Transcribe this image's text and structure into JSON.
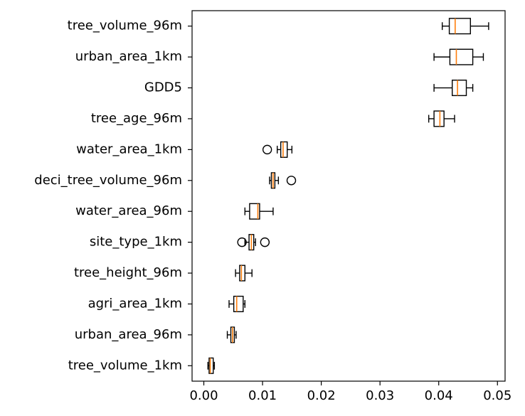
{
  "chart_data": {
    "type": "boxplot",
    "orientation": "horizontal",
    "title": "",
    "xlabel": "",
    "ylabel": "",
    "xlim": [
      -0.002,
      0.0513
    ],
    "xticks": [
      0.0,
      0.01,
      0.02,
      0.03,
      0.04,
      0.05
    ],
    "xtick_labels": [
      "0.00",
      "0.01",
      "0.02",
      "0.03",
      "0.04",
      "0.05"
    ],
    "grid": false,
    "colors": {
      "median": "#ff7f0e",
      "box_edge": "#000000",
      "box_fill": "#ffffff"
    },
    "series": [
      {
        "label": "tree_volume_96m",
        "whisker_low": 0.0406,
        "q1": 0.0418,
        "median": 0.0428,
        "q3": 0.0454,
        "whisker_high": 0.0485,
        "fliers": []
      },
      {
        "label": "urban_area_1km",
        "whisker_low": 0.0392,
        "q1": 0.0419,
        "median": 0.043,
        "q3": 0.0458,
        "whisker_high": 0.0476,
        "fliers": []
      },
      {
        "label": "GDD5",
        "whisker_low": 0.0392,
        "q1": 0.0423,
        "median": 0.0432,
        "q3": 0.0447,
        "whisker_high": 0.0458,
        "fliers": []
      },
      {
        "label": "tree_age_96m",
        "whisker_low": 0.0383,
        "q1": 0.0392,
        "median": 0.0402,
        "q3": 0.0409,
        "whisker_high": 0.0427,
        "fliers": []
      },
      {
        "label": "water_area_1km",
        "whisker_low": 0.0125,
        "q1": 0.0131,
        "median": 0.0135,
        "q3": 0.0142,
        "whisker_high": 0.015,
        "fliers": [
          0.0108
        ]
      },
      {
        "label": "deci_tree_volume_96m",
        "whisker_low": 0.0112,
        "q1": 0.0115,
        "median": 0.0118,
        "q3": 0.0121,
        "whisker_high": 0.0127,
        "fliers": [
          0.0149
        ]
      },
      {
        "label": "water_area_96m",
        "whisker_low": 0.007,
        "q1": 0.0078,
        "median": 0.0092,
        "q3": 0.0095,
        "whisker_high": 0.0118,
        "fliers": []
      },
      {
        "label": "site_type_1km",
        "whisker_low": 0.007,
        "q1": 0.0077,
        "median": 0.0081,
        "q3": 0.0085,
        "whisker_high": 0.0088,
        "fliers": [
          0.0065,
          0.0104
        ]
      },
      {
        "label": "tree_height_96m",
        "whisker_low": 0.0054,
        "q1": 0.0061,
        "median": 0.0064,
        "q3": 0.007,
        "whisker_high": 0.0082,
        "fliers": []
      },
      {
        "label": "agri_area_1km",
        "whisker_low": 0.0043,
        "q1": 0.0051,
        "median": 0.0056,
        "q3": 0.0067,
        "whisker_high": 0.007,
        "fliers": []
      },
      {
        "label": "urban_area_96m",
        "whisker_low": 0.004,
        "q1": 0.0046,
        "median": 0.0049,
        "q3": 0.0052,
        "whisker_high": 0.0055,
        "fliers": []
      },
      {
        "label": "tree_volume_1km",
        "whisker_low": 0.0007,
        "q1": 0.0009,
        "median": 0.0011,
        "q3": 0.0016,
        "whisker_high": 0.0018,
        "fliers": []
      }
    ]
  }
}
